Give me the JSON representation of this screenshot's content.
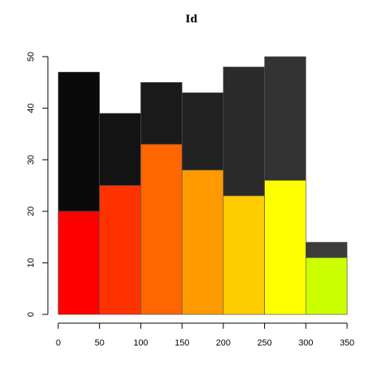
{
  "chart_data": {
    "type": "bar",
    "title": "Id",
    "xlabel": "",
    "ylabel": "",
    "xlim": [
      0,
      350
    ],
    "ylim": [
      0,
      50
    ],
    "x_ticks": [
      0,
      50,
      100,
      150,
      200,
      250,
      300,
      350
    ],
    "y_ticks": [
      0,
      10,
      20,
      30,
      40,
      50
    ],
    "grid": false,
    "bins": [
      {
        "start": 0,
        "end": 50,
        "total": 47,
        "highlight": 20,
        "total_color": "#0A0A0A",
        "highlight_color": "#FF0000"
      },
      {
        "start": 50,
        "end": 100,
        "total": 39,
        "highlight": 25,
        "total_color": "#131313",
        "highlight_color": "#FF3300"
      },
      {
        "start": 100,
        "end": 150,
        "total": 45,
        "highlight": 33,
        "total_color": "#1A1A1A",
        "highlight_color": "#FF6600"
      },
      {
        "start": 150,
        "end": 200,
        "total": 43,
        "highlight": 28,
        "total_color": "#222222",
        "highlight_color": "#FF9900"
      },
      {
        "start": 200,
        "end": 250,
        "total": 48,
        "highlight": 23,
        "total_color": "#2B2B2B",
        "highlight_color": "#FFCC00"
      },
      {
        "start": 250,
        "end": 300,
        "total": 50,
        "highlight": 26,
        "total_color": "#333333",
        "highlight_color": "#FFFF00"
      },
      {
        "start": 300,
        "end": 350,
        "total": 14,
        "highlight": 11,
        "total_color": "#3C3C3C",
        "highlight_color": "#CCFF00"
      }
    ]
  }
}
